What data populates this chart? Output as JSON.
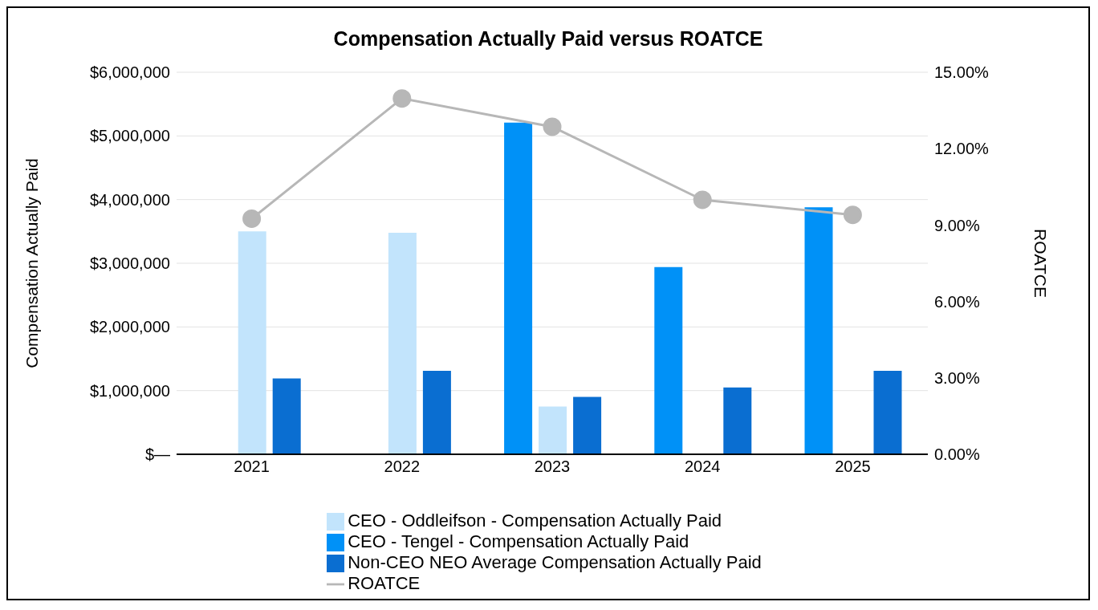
{
  "chart_data": {
    "type": "bar",
    "title": "Compensation Actually Paid versus ROATCE",
    "ylabel": "Compensation Actually Paid",
    "y2label": "ROATCE",
    "categories": [
      "2021",
      "2022",
      "2023",
      "2024",
      "2025"
    ],
    "series": [
      {
        "name": "CEO - Tengel - Compensation Actually Paid",
        "color": "#0091f7",
        "values": [
          null,
          null,
          5210000,
          2940000,
          3880000
        ]
      },
      {
        "name": "CEO - Oddleifson - Compensation Actually Paid",
        "color": "#c2e4fc",
        "values": [
          3500000,
          3480000,
          750000,
          null,
          null
        ]
      },
      {
        "name": "Non-CEO NEO Average Compensation Actually Paid",
        "color": "#0a6ed1",
        "values": [
          1190000,
          1310000,
          900000,
          1050000,
          1310000
        ]
      },
      {
        "name": "ROATCE",
        "type": "line",
        "axis": "y2",
        "color": "#b7b7b7",
        "marker": "circle",
        "values": [
          9.25,
          13.97,
          12.86,
          9.99,
          9.4
        ]
      }
    ],
    "ylim": [
      0,
      6000000
    ],
    "yticks": [
      {
        "value": 0,
        "label": "$—"
      },
      {
        "value": 1000000,
        "label": "$1,000,000"
      },
      {
        "value": 2000000,
        "label": "$2,000,000"
      },
      {
        "value": 3000000,
        "label": "$3,000,000"
      },
      {
        "value": 4000000,
        "label": "$4,000,000"
      },
      {
        "value": 5000000,
        "label": "$5,000,000"
      },
      {
        "value": 6000000,
        "label": "$6,000,000"
      }
    ],
    "y2lim": [
      0,
      15
    ],
    "y2ticks": [
      {
        "value": 0,
        "label": "0.00%"
      },
      {
        "value": 3,
        "label": "3.00%"
      },
      {
        "value": 6,
        "label": "6.00%"
      },
      {
        "value": 9,
        "label": "9.00%"
      },
      {
        "value": 12,
        "label": "12.00%"
      },
      {
        "value": 15,
        "label": "15.00%"
      }
    ],
    "grid": "y",
    "legend": "bottom"
  }
}
